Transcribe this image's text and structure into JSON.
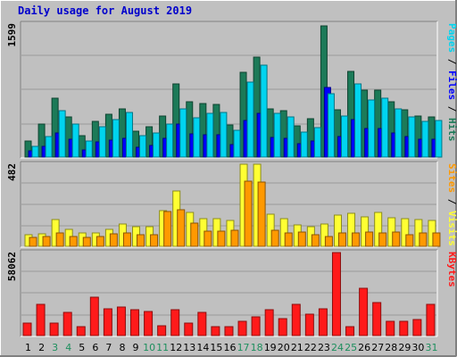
{
  "title": "Daily usage for August 2019",
  "colors": {
    "hits": "#1c7a58",
    "files": "#0000ff",
    "pages": "#00d4f0",
    "visits": "#ffff33",
    "sites": "#ff9900",
    "kbytes": "#ff1a1a",
    "title": "#0000cc",
    "weekend": "#1e8f5e",
    "weekday": "#000000",
    "background": "#c0c0c0"
  },
  "chart_data": [
    {
      "type": "bar",
      "panel": "top",
      "max_label": "1599",
      "ylim": [
        0,
        1599
      ],
      "right_label_parts": [
        {
          "text": "Pages",
          "color": "#00d4f0"
        },
        {
          "text": " / ",
          "color": "#000000"
        },
        {
          "text": "Files",
          "color": "#0000ff"
        },
        {
          "text": " / ",
          "color": "#000000"
        },
        {
          "text": "Hits",
          "color": "#1c7a58"
        }
      ],
      "categories": [
        "1",
        "2",
        "3",
        "4",
        "5",
        "6",
        "7",
        "8",
        "9",
        "10",
        "11",
        "12",
        "13",
        "14",
        "15",
        "16",
        "17",
        "18",
        "19",
        "20",
        "21",
        "22",
        "23",
        "24",
        "25",
        "26",
        "27",
        "28",
        "29",
        "30",
        "31"
      ],
      "series": [
        {
          "name": "Hits",
          "color": "#1c7a58",
          "values": [
            198,
            398,
            710,
            480,
            260,
            432,
            510,
            583,
            308,
            368,
            496,
            877,
            666,
            639,
            628,
            387,
            1022,
            1200,
            584,
            560,
            378,
            457,
            1580,
            566,
            1030,
            800,
            800,
            660,
            573,
            490,
            480
          ]
        },
        {
          "name": "Files",
          "color": "#0000ff",
          "values": [
            70,
            130,
            295,
            210,
            90,
            180,
            200,
            225,
            120,
            140,
            220,
            395,
            280,
            270,
            270,
            155,
            444,
            525,
            240,
            230,
            160,
            195,
            840,
            245,
            450,
            340,
            340,
            285,
            250,
            215,
            210
          ]
        },
        {
          "name": "Pages",
          "color": "#00d4f0",
          "values": [
            130,
            245,
            560,
            400,
            190,
            365,
            450,
            533,
            253,
            288,
            395,
            584,
            476,
            525,
            540,
            322,
            897,
            1110,
            523,
            480,
            297,
            357,
            767,
            492,
            877,
            686,
            712,
            583,
            486,
            427,
            436
          ]
        }
      ]
    },
    {
      "type": "bar",
      "panel": "middle",
      "max_label": "482",
      "ylim": [
        0,
        482
      ],
      "right_label_parts": [
        {
          "text": "Sites",
          "color": "#ff9900"
        },
        {
          "text": " / ",
          "color": "#000000"
        },
        {
          "text": "Visits",
          "color": "#ffff33"
        }
      ],
      "categories": [
        "1",
        "2",
        "3",
        "4",
        "5",
        "6",
        "7",
        "8",
        "9",
        "10",
        "11",
        "12",
        "13",
        "14",
        "15",
        "16",
        "17",
        "18",
        "19",
        "20",
        "21",
        "22",
        "23",
        "24",
        "25",
        "26",
        "27",
        "28",
        "29",
        "30",
        "31"
      ],
      "series": [
        {
          "name": "Visits",
          "color": "#ffff33",
          "values": [
            70,
            72,
            157,
            100,
            80,
            80,
            100,
            130,
            113,
            115,
            207,
            323,
            200,
            160,
            160,
            150,
            480,
            480,
            186,
            160,
            125,
            114,
            132,
            185,
            192,
            171,
            198,
            170,
            163,
            155,
            150
          ]
        },
        {
          "name": "Sites",
          "color": "#ff9900",
          "values": [
            50,
            60,
            80,
            60,
            55,
            60,
            72,
            80,
            70,
            70,
            202,
            215,
            135,
            90,
            90,
            95,
            385,
            375,
            92,
            80,
            85,
            70,
            60,
            80,
            80,
            82,
            80,
            85,
            67,
            80,
            80
          ]
        }
      ]
    },
    {
      "type": "bar",
      "panel": "bottom",
      "max_label": "58062",
      "ylim": [
        0,
        58062
      ],
      "right_label_parts": [
        {
          "text": "KBytes",
          "color": "#ff1a1a"
        }
      ],
      "categories": [
        "1",
        "2",
        "3",
        "4",
        "5",
        "6",
        "7",
        "8",
        "9",
        "10",
        "11",
        "12",
        "13",
        "14",
        "15",
        "16",
        "17",
        "18",
        "19",
        "20",
        "21",
        "22",
        "23",
        "24",
        "25",
        "26",
        "27",
        "28",
        "29",
        "30",
        "31"
      ],
      "series": [
        {
          "name": "KBytes",
          "color": "#ff1a1a",
          "values": [
            9000,
            22000,
            9000,
            16000,
            6000,
            27000,
            19000,
            20000,
            18000,
            17000,
            7000,
            18000,
            9000,
            16000,
            6000,
            6000,
            10000,
            13000,
            18000,
            12000,
            22000,
            15000,
            19000,
            58062,
            6000,
            33000,
            23000,
            10000,
            10000,
            11000,
            22000
          ]
        }
      ]
    }
  ]
}
